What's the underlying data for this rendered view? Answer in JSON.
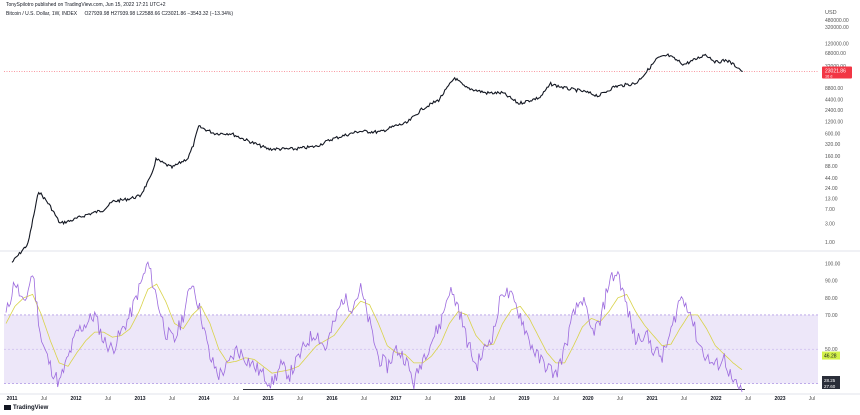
{
  "header": {
    "published_by": "TonySpilotro published on TradingView.com, Jun 15, 2022 17:21 UTC+2",
    "symbol": "Bitcoin / U.S. Dollar, 1W, INDEX",
    "ohlc": "O27939.98  H27939.98  L22588.66  C23021.86  −3543.32 (−13.34%)"
  },
  "branding": {
    "logo_text": "TradingView"
  },
  "colors": {
    "price_line": "#131722",
    "current_price_badge": "#f23645",
    "rsi_line": "#9c6ade",
    "rsi_ma_line": "#d9d34a",
    "rsi_band_fill": "#e8e1f7",
    "rsi_band_border": "#9c7ee0",
    "ma_badge": "#d4f24a",
    "grid_text": "#555555"
  },
  "chart_data": [
    {
      "type": "line",
      "title": "Bitcoin / U.S. Dollar, 1W, INDEX",
      "currency_label": "USD",
      "scale": "log",
      "ylim": [
        1.0,
        480000
      ],
      "y_tick_labels": [
        "480000.00",
        "320000.00",
        "120000.00",
        "68000.00",
        "32000.00",
        "8800.00",
        "4400.00",
        "2400.00",
        "1200.00",
        "600.00",
        "320.00",
        "160.00",
        "88.00",
        "44.00",
        "24.00",
        "13.00",
        "7.00",
        "3.00",
        "1.00"
      ],
      "y_tick_values": [
        480000,
        320000,
        120000,
        68000,
        32000,
        8800,
        4400,
        2400,
        1200,
        600,
        320,
        160,
        88,
        44,
        24,
        13,
        7,
        3,
        1
      ],
      "current_price": {
        "value": 23021.86,
        "label": "23021.86",
        "sub_label": "16 d"
      },
      "x": [
        "2011-01",
        "2011-04",
        "2011-06",
        "2011-08",
        "2011-10",
        "2011-12",
        "2012-03",
        "2012-06",
        "2012-08",
        "2012-10",
        "2013-01",
        "2013-03",
        "2013-04",
        "2013-07",
        "2013-10",
        "2013-11",
        "2013-12",
        "2014-03",
        "2014-06",
        "2014-09",
        "2015-01",
        "2015-06",
        "2015-10",
        "2016-01",
        "2016-06",
        "2016-10",
        "2017-01",
        "2017-03",
        "2017-06",
        "2017-09",
        "2017-12",
        "2018-02",
        "2018-06",
        "2018-09",
        "2018-12",
        "2019-04",
        "2019-06",
        "2019-09",
        "2019-12",
        "2020-03",
        "2020-06",
        "2020-10",
        "2020-12",
        "2021-02",
        "2021-04",
        "2021-07",
        "2021-09",
        "2021-11",
        "2022-01",
        "2022-03",
        "2022-05",
        "2022-06"
      ],
      "values": [
        0.3,
        0.9,
        20,
        9,
        3,
        3.5,
        5,
        6.5,
        11,
        12,
        15,
        45,
        130,
        80,
        140,
        300,
        900,
        600,
        600,
        400,
        240,
        240,
        280,
        430,
        680,
        650,
        950,
        1100,
        2600,
        4300,
        16000,
        9000,
        6500,
        6500,
        3500,
        5000,
        11000,
        8500,
        7200,
        5500,
        9500,
        11500,
        23000,
        50000,
        60000,
        35000,
        46000,
        64000,
        40000,
        45000,
        30000,
        23021
      ]
    },
    {
      "type": "line",
      "title": "RSI",
      "ylim": [
        25,
        105
      ],
      "y_tick_labels": [
        "100.00",
        "90.00",
        "80.00",
        "70.00",
        "50.00",
        "30.00"
      ],
      "y_tick_values": [
        100,
        90,
        80,
        70,
        50,
        30
      ],
      "band": [
        30,
        70
      ],
      "middle_line": 50,
      "labels": {
        "rsi_ma_value": "46.28",
        "rsi_value_a": "28.25",
        "rsi_value_b": "27.60"
      },
      "series": [
        {
          "values": [
            70,
            90,
            75,
            95,
            55,
            40,
            30,
            45,
            60,
            65,
            70,
            55,
            50,
            60,
            70,
            85,
            100,
            80,
            60,
            55,
            70,
            90,
            70,
            45,
            35,
            40,
            50,
            45,
            40,
            35,
            30,
            40,
            35,
            45,
            55,
            60,
            50,
            65,
            80,
            75,
            85,
            65,
            45,
            40,
            50,
            45,
            30,
            45,
            55,
            65,
            85,
            75,
            55,
            40,
            50,
            60,
            85,
            80,
            70,
            55,
            45,
            40,
            35,
            50,
            70,
            80,
            60,
            65,
            90,
            95,
            75,
            55,
            60,
            50,
            45,
            60,
            80,
            75,
            55,
            45,
            40,
            45,
            30,
            25
          ]
        },
        {
          "values": [
            65,
            75,
            80,
            82,
            70,
            55,
            42,
            40,
            48,
            55,
            60,
            60,
            57,
            58,
            62,
            72,
            85,
            88,
            78,
            65,
            62,
            70,
            75,
            65,
            50,
            42,
            43,
            45,
            44,
            40,
            36,
            37,
            38,
            40,
            46,
            52,
            55,
            58,
            65,
            72,
            78,
            76,
            65,
            52,
            48,
            47,
            42,
            42,
            46,
            53,
            65,
            72,
            70,
            58,
            52,
            53,
            65,
            73,
            75,
            68,
            58,
            48,
            42,
            42,
            52,
            63,
            68,
            66,
            72,
            80,
            82,
            72,
            64,
            58,
            52,
            53,
            62,
            70,
            70,
            62,
            52,
            47,
            42,
            38
          ]
        }
      ]
    }
  ],
  "x_axis": {
    "tick_labels": [
      "2011",
      "Jul",
      "2012",
      "Jul",
      "2013",
      "Jul",
      "2014",
      "Jul",
      "2015",
      "Jul",
      "2016",
      "Jul",
      "2017",
      "Jul",
      "2018",
      "Jul",
      "2019",
      "Jul",
      "2020",
      "Jul",
      "2021",
      "Jul",
      "2022",
      "Jul",
      "2023",
      "Jul"
    ],
    "tick_dates": [
      2011.0,
      2011.5,
      2012.0,
      2012.5,
      2013.0,
      2013.5,
      2014.0,
      2014.5,
      2015.0,
      2015.5,
      2016.0,
      2016.5,
      2017.0,
      2017.5,
      2018.0,
      2018.5,
      2019.0,
      2019.5,
      2020.0,
      2020.5,
      2021.0,
      2021.5,
      2022.0,
      2022.5,
      2023.0,
      2023.5
    ]
  }
}
